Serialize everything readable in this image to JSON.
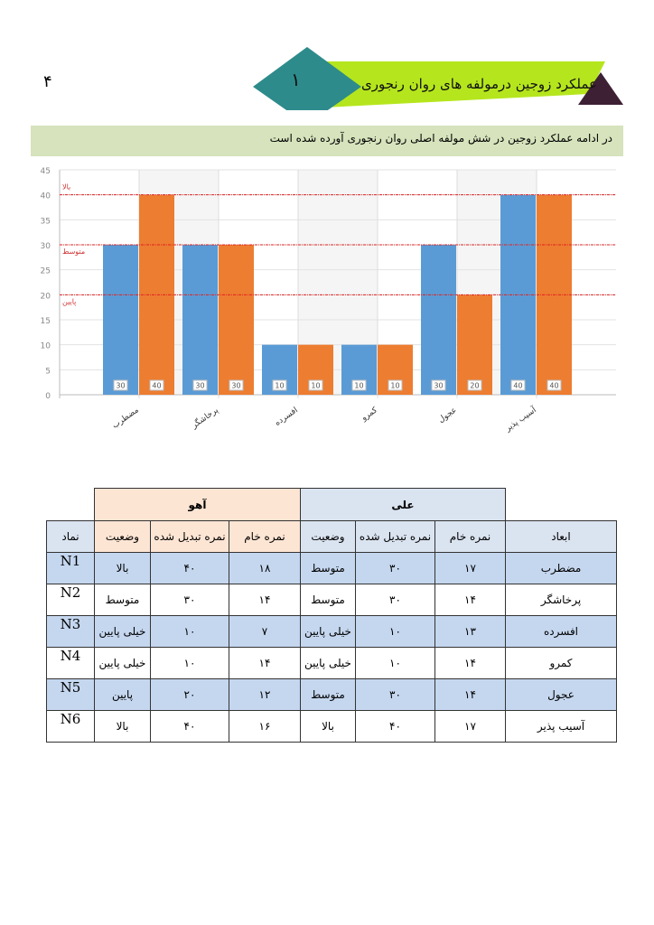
{
  "page_number": "۴",
  "banner": {
    "number": "۱",
    "title": "عملکرد زوجین درمولفه های روان رنجوری"
  },
  "intro": "در ادامه عملکرد زوجین در شش مولفه اصلی روان رنجوری آورده شده است",
  "chart_data": {
    "type": "bar",
    "categories": [
      "مضطرب",
      "پرخاشگر",
      "افسرده",
      "کمرو",
      "عجول",
      "آسیب پذیر"
    ],
    "series": [
      {
        "name": "علی",
        "color": "#5b9bd5",
        "values": [
          30,
          30,
          10,
          10,
          30,
          40
        ]
      },
      {
        "name": "آهو",
        "color": "#ed7d31",
        "values": [
          40,
          30,
          10,
          10,
          20,
          40
        ]
      }
    ],
    "ylim": [
      0,
      45
    ],
    "yticks": [
      0,
      5,
      10,
      15,
      20,
      25,
      30,
      35,
      40,
      45
    ],
    "reference_lines": [
      {
        "label": "بالا",
        "value": 40
      },
      {
        "label": "متوسط",
        "value": 30
      },
      {
        "label": "پایین",
        "value": 20
      }
    ]
  },
  "table": {
    "group_aho": "آهو",
    "group_ali": "علی",
    "headers": {
      "code": "نماد",
      "status": "وضعیت",
      "converted": "نمره تبدیل شده",
      "raw": "نمره خام",
      "dimension": "ابعاد"
    },
    "rows": [
      {
        "code": "N1",
        "aho_status": "بالا",
        "aho_conv": "۴۰",
        "aho_raw": "۱۸",
        "ali_status": "متوسط",
        "ali_conv": "۳۰",
        "ali_raw": "۱۷",
        "dim": "مضطرب"
      },
      {
        "code": "N2",
        "aho_status": "متوسط",
        "aho_conv": "۳۰",
        "aho_raw": "۱۴",
        "ali_status": "متوسط",
        "ali_conv": "۳۰",
        "ali_raw": "۱۴",
        "dim": "پرخاشگر"
      },
      {
        "code": "N3",
        "aho_status": "خیلی پایین",
        "aho_conv": "۱۰",
        "aho_raw": "۷",
        "ali_status": "خیلی پایین",
        "ali_conv": "۱۰",
        "ali_raw": "۱۳",
        "dim": "افسرده"
      },
      {
        "code": "N4",
        "aho_status": "خیلی پایین",
        "aho_conv": "۱۰",
        "aho_raw": "۱۴",
        "ali_status": "خیلی پایین",
        "ali_conv": "۱۰",
        "ali_raw": "۱۴",
        "dim": "کمرو"
      },
      {
        "code": "N5",
        "aho_status": "پایین",
        "aho_conv": "۲۰",
        "aho_raw": "۱۲",
        "ali_status": "متوسط",
        "ali_conv": "۳۰",
        "ali_raw": "۱۴",
        "dim": "عجول"
      },
      {
        "code": "N6",
        "aho_status": "بالا",
        "aho_conv": "۴۰",
        "aho_raw": "۱۶",
        "ali_status": "بالا",
        "ali_conv": "۴۰",
        "ali_raw": "۱۷",
        "dim": "آسیب پذیر"
      }
    ]
  }
}
